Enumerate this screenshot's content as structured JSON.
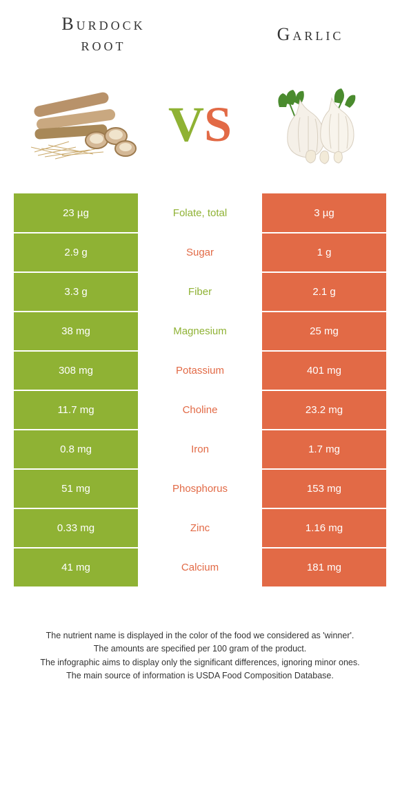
{
  "header": {
    "left_title": "Burdock root",
    "right_title": "Garlic",
    "vs_v": "V",
    "vs_s": "S"
  },
  "colors": {
    "left": "#8fb234",
    "right": "#e26a46",
    "text": "#333333",
    "bg": "#ffffff"
  },
  "rows": [
    {
      "label": "Folate, total",
      "left": "23 µg",
      "right": "3 µg",
      "winner": "left"
    },
    {
      "label": "Sugar",
      "left": "2.9 g",
      "right": "1 g",
      "winner": "right"
    },
    {
      "label": "Fiber",
      "left": "3.3 g",
      "right": "2.1 g",
      "winner": "left"
    },
    {
      "label": "Magnesium",
      "left": "38 mg",
      "right": "25 mg",
      "winner": "left"
    },
    {
      "label": "Potassium",
      "left": "308 mg",
      "right": "401 mg",
      "winner": "right"
    },
    {
      "label": "Choline",
      "left": "11.7 mg",
      "right": "23.2 mg",
      "winner": "right"
    },
    {
      "label": "Iron",
      "left": "0.8 mg",
      "right": "1.7 mg",
      "winner": "right"
    },
    {
      "label": "Phosphorus",
      "left": "51 mg",
      "right": "153 mg",
      "winner": "right"
    },
    {
      "label": "Zinc",
      "left": "0.33 mg",
      "right": "1.16 mg",
      "winner": "right"
    },
    {
      "label": "Calcium",
      "left": "41 mg",
      "right": "181 mg",
      "winner": "right"
    }
  ],
  "footer": {
    "line1": "The nutrient name is displayed in the color of the food we considered as 'winner'.",
    "line2": "The amounts are specified per 100 gram of the product.",
    "line3": "The infographic aims to display only the significant differences, ignoring minor ones.",
    "line4": "The main source of information is USDA Food Composition Database."
  }
}
